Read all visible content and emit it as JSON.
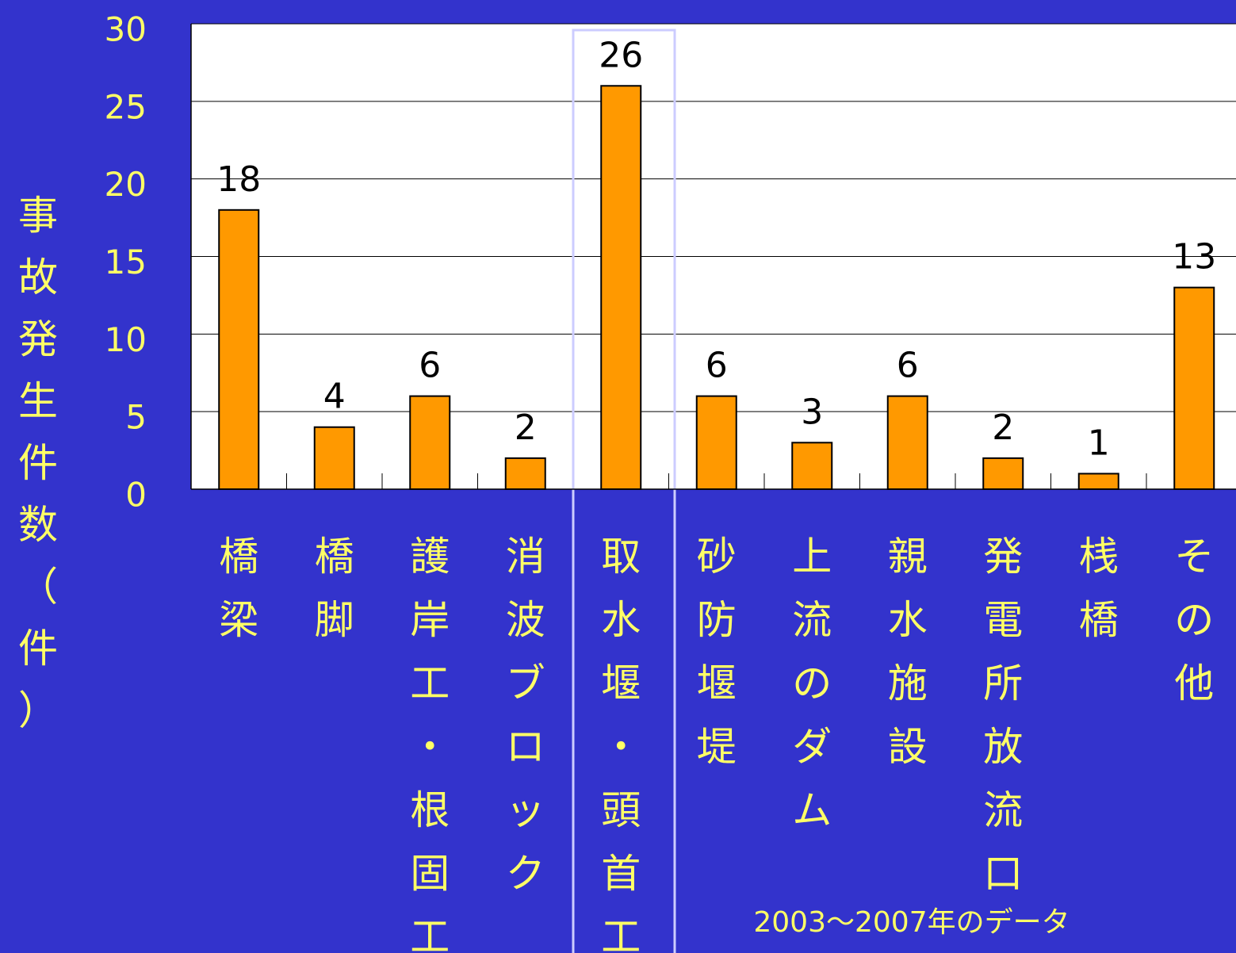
{
  "chart_data": {
    "type": "bar",
    "y_axis_label": "事故発生件数（件）",
    "annotation": "2003～2007年のデータ",
    "categories": [
      "橋梁",
      "橋脚",
      "護岸工・根固工",
      "消波ブロック",
      "取水堰・頭首工",
      "砂防堰堤",
      "上流のダム",
      "親水施設",
      "発電所放流口",
      "桟橋",
      "その他"
    ],
    "values": [
      18,
      4,
      6,
      2,
      26,
      6,
      3,
      6,
      2,
      1,
      13
    ],
    "color": "#ff9900",
    "ylim": [
      0,
      30
    ],
    "yticks": [
      0,
      5,
      10,
      15,
      20,
      25,
      30
    ],
    "grid": true
  }
}
